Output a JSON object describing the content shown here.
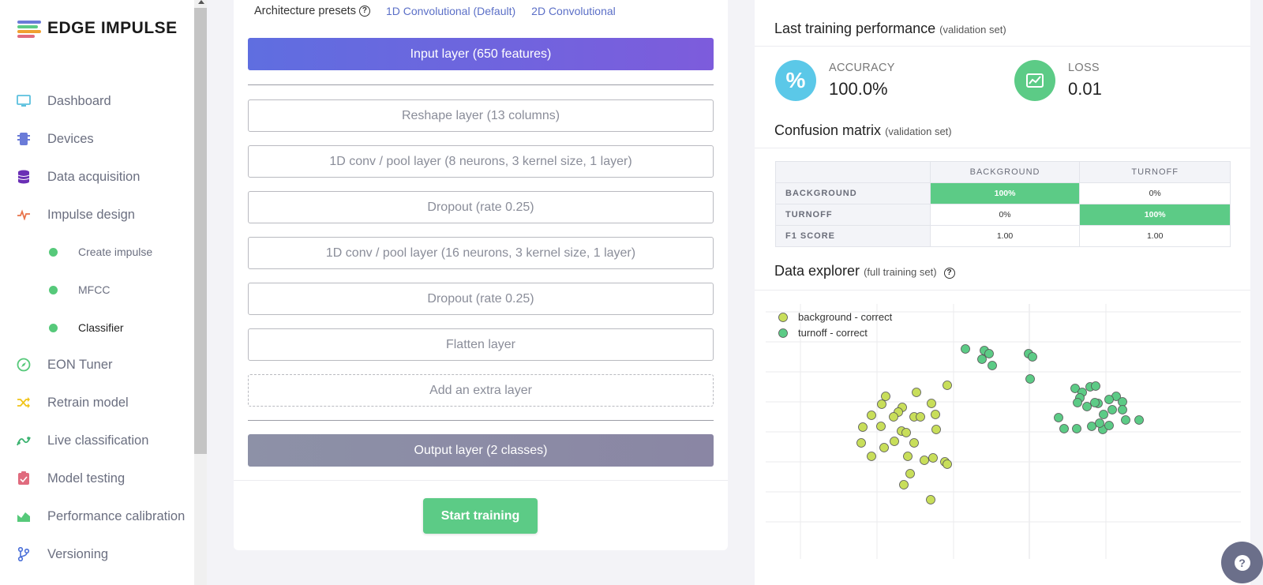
{
  "logo": {
    "text": "EDGE IMPULSE"
  },
  "sidebar": {
    "items": [
      {
        "label": "Dashboard",
        "icon": "monitor-icon",
        "color": "#5bc0de"
      },
      {
        "label": "Devices",
        "icon": "chip-icon",
        "color": "#6a7bd8"
      },
      {
        "label": "Data acquisition",
        "icon": "database-icon",
        "color": "#6a2fb5"
      },
      {
        "label": "Impulse design",
        "icon": "pulse-icon",
        "color": "#e8734a"
      },
      {
        "label": "EON Tuner",
        "icon": "compass-icon",
        "color": "#56c97a"
      },
      {
        "label": "Retrain model",
        "icon": "shuffle-icon",
        "color": "#f0c419"
      },
      {
        "label": "Live classification",
        "icon": "wave-icon",
        "color": "#3cb371"
      },
      {
        "label": "Model testing",
        "icon": "clipboard-check-icon",
        "color": "#e06b7e"
      },
      {
        "label": "Performance calibration",
        "icon": "area-chart-icon",
        "color": "#56c97a"
      },
      {
        "label": "Versioning",
        "icon": "branch-icon",
        "color": "#4a6fd8"
      }
    ],
    "sub_items": [
      {
        "label": "Create impulse",
        "active": false
      },
      {
        "label": "MFCC",
        "active": false
      },
      {
        "label": "Classifier",
        "active": true
      }
    ]
  },
  "architecture": {
    "presets_label": "Architecture presets",
    "preset_1d": "1D Convolutional (Default)",
    "preset_2d": "2D Convolutional",
    "input_layer": "Input layer (650 features)",
    "layers": [
      "Reshape layer (13 columns)",
      "1D conv / pool layer (8 neurons, 3 kernel size, 1 layer)",
      "Dropout (rate 0.25)",
      "1D conv / pool layer (16 neurons, 3 kernel size, 1 layer)",
      "Dropout (rate 0.25)",
      "Flatten layer"
    ],
    "add_layer": "Add an extra layer",
    "output_layer": "Output layer (2 classes)",
    "start_training": "Start training"
  },
  "performance": {
    "title": "Last training performance",
    "subtitle": "(validation set)",
    "accuracy_label": "ACCURACY",
    "accuracy_value": "100.0%",
    "accuracy_icon": "%",
    "loss_label": "LOSS",
    "loss_value": "0.01"
  },
  "confusion": {
    "title": "Confusion matrix",
    "subtitle": "(validation set)",
    "columns": [
      "BACKGROUND",
      "TURNOFF"
    ],
    "rows": [
      {
        "label": "BACKGROUND",
        "cells": [
          "100%",
          "0%"
        ],
        "hit": [
          true,
          false
        ]
      },
      {
        "label": "TURNOFF",
        "cells": [
          "0%",
          "100%"
        ],
        "hit": [
          false,
          true
        ]
      },
      {
        "label": "F1 SCORE",
        "cells": [
          "1.00",
          "1.00"
        ],
        "hit": [
          false,
          false
        ]
      }
    ]
  },
  "explorer": {
    "title": "Data explorer",
    "subtitle": "(full training set)",
    "legend": [
      {
        "label": "background - correct",
        "color": "#c8de5a"
      },
      {
        "label": "turnoff - correct",
        "color": "#5ccb86"
      }
    ]
  },
  "chart_data": {
    "type": "scatter",
    "series": [
      {
        "name": "background - correct",
        "color": "#c8de5a",
        "points": [
          [
            191,
            112
          ],
          [
            230,
            103
          ],
          [
            152,
            117
          ],
          [
            147,
            127
          ],
          [
            210,
            126
          ],
          [
            173,
            131
          ],
          [
            134,
            141
          ],
          [
            168,
            137
          ],
          [
            215,
            140
          ],
          [
            188,
            143
          ],
          [
            162,
            143
          ],
          [
            196,
            143
          ],
          [
            123,
            156
          ],
          [
            146,
            155
          ],
          [
            216,
            159
          ],
          [
            172,
            161
          ],
          [
            121,
            176
          ],
          [
            163,
            174
          ],
          [
            178,
            163
          ],
          [
            150,
            182
          ],
          [
            188,
            176
          ],
          [
            134,
            193
          ],
          [
            180,
            193
          ],
          [
            212,
            195
          ],
          [
            201,
            198
          ],
          [
            227,
            200
          ],
          [
            183,
            215
          ],
          [
            230,
            203
          ],
          [
            175,
            229
          ],
          [
            209,
            248
          ]
        ]
      },
      {
        "name": "turnoff - correct",
        "color": "#5ccb86",
        "points": [
          [
            253,
            57
          ],
          [
            277,
            59
          ],
          [
            283,
            63
          ],
          [
            274,
            70
          ],
          [
            287,
            78
          ],
          [
            333,
            63
          ],
          [
            338,
            67
          ],
          [
            335,
            95
          ],
          [
            392,
            107
          ],
          [
            411,
            105
          ],
          [
            418,
            104
          ],
          [
            401,
            112
          ],
          [
            398,
            119
          ],
          [
            407,
            130
          ],
          [
            421,
            126
          ],
          [
            444,
            117
          ],
          [
            435,
            121
          ],
          [
            452,
            124
          ],
          [
            417,
            125
          ],
          [
            428,
            140
          ],
          [
            452,
            134
          ],
          [
            395,
            125
          ],
          [
            371,
            144
          ],
          [
            378,
            158
          ],
          [
            413,
            155
          ],
          [
            439,
            134
          ],
          [
            427,
            159
          ],
          [
            423,
            151
          ],
          [
            394,
            158
          ],
          [
            473,
            147
          ],
          [
            456,
            147
          ],
          [
            435,
            154
          ]
        ]
      }
    ]
  },
  "footer": {
    "help_icon": "?"
  }
}
